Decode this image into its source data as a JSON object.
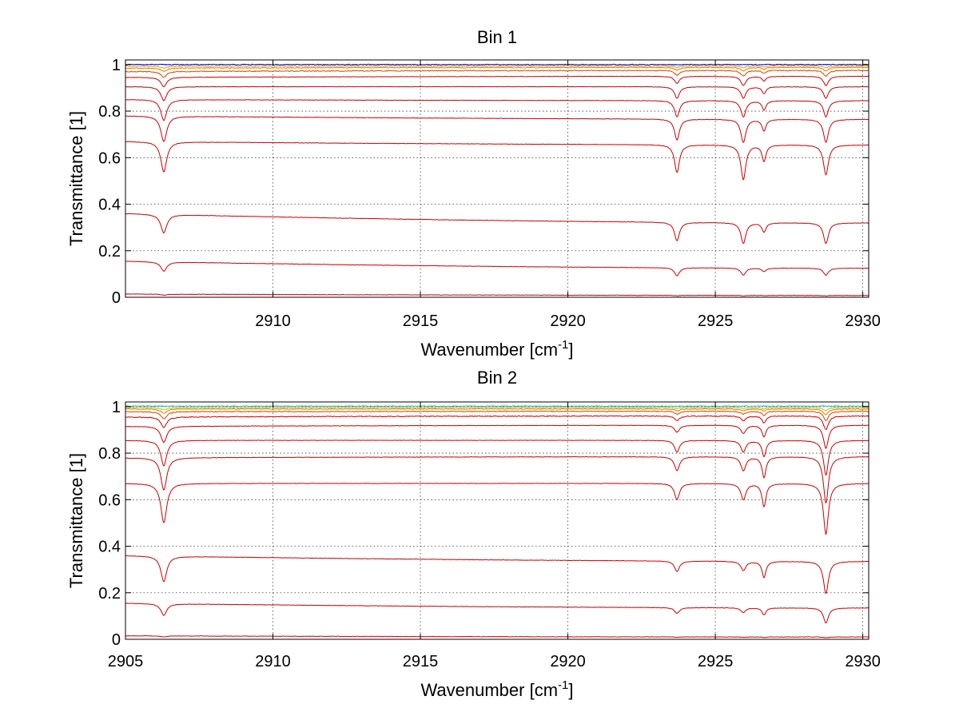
{
  "chart_data": [
    {
      "type": "line",
      "title": "Bin 1",
      "xlabel": "Wavenumber [cm",
      "xlabel_sup": "-1",
      "xlabel_end": "]",
      "ylabel": "Transmittance [1]",
      "xlim": [
        2905,
        2930.2
      ],
      "ylim": [
        0,
        1.02
      ],
      "xticks": [
        2910,
        2915,
        2920,
        2925,
        2930
      ],
      "xtick_labels": [
        "2910",
        "2915",
        "2920",
        "2925",
        "2930"
      ],
      "yticks": [
        0,
        0.2,
        0.4,
        0.6,
        0.8,
        1
      ],
      "ytick_labels": [
        "0",
        "0.2",
        "0.4",
        "0.6",
        "0.8",
        "1"
      ],
      "grid": true,
      "dips": [
        {
          "x": 2906.3,
          "w": 0.12
        },
        {
          "x": 2923.7,
          "w": 0.1
        },
        {
          "x": 2925.95,
          "w": 0.1
        },
        {
          "x": 2926.65,
          "w": 0.08
        },
        {
          "x": 2928.75,
          "w": 0.1
        }
      ],
      "series": [
        {
          "name": "bin1-s1",
          "color": "#cc0000",
          "y_start": 0.014,
          "y_end": 0.008,
          "dip_depths": [
            0.004,
            0.002,
            0.002,
            0.001,
            0.002
          ]
        },
        {
          "name": "bin1-s2",
          "color": "#cc0000",
          "y_start": 0.155,
          "y_end": 0.125,
          "dip_depths": [
            0.04,
            0.035,
            0.03,
            0.015,
            0.03
          ]
        },
        {
          "name": "bin1-s3",
          "color": "#cc0000",
          "y_start": 0.36,
          "y_end": 0.32,
          "dip_depths": [
            0.08,
            0.08,
            0.09,
            0.04,
            0.09
          ]
        },
        {
          "name": "bin1-s4",
          "color": "#cc0000",
          "y_start": 0.67,
          "y_end": 0.655,
          "dip_depths": [
            0.13,
            0.12,
            0.15,
            0.07,
            0.13
          ]
        },
        {
          "name": "bin1-s5",
          "color": "#cc0000",
          "y_start": 0.78,
          "y_end": 0.765,
          "dip_depths": [
            0.11,
            0.09,
            0.1,
            0.05,
            0.1
          ]
        },
        {
          "name": "bin1-s6",
          "color": "#cc0000",
          "y_start": 0.85,
          "y_end": 0.845,
          "dip_depths": [
            0.09,
            0.07,
            0.07,
            0.04,
            0.07
          ]
        },
        {
          "name": "bin1-s7",
          "color": "#cc0000",
          "y_start": 0.905,
          "y_end": 0.905,
          "dip_depths": [
            0.06,
            0.05,
            0.05,
            0.03,
            0.05
          ]
        },
        {
          "name": "bin1-s8",
          "color": "#cc0000",
          "y_start": 0.945,
          "y_end": 0.95,
          "dip_depths": [
            0.04,
            0.03,
            0.04,
            0.02,
            0.04
          ]
        },
        {
          "name": "bin1-s9",
          "color": "#dd4400",
          "y_start": 0.97,
          "y_end": 0.975,
          "dip_depths": [
            0.025,
            0.02,
            0.025,
            0.012,
            0.025
          ]
        },
        {
          "name": "bin1-s10",
          "color": "#ee7700",
          "y_start": 0.985,
          "y_end": 0.988,
          "dip_depths": [
            0.015,
            0.012,
            0.015,
            0.008,
            0.015
          ]
        },
        {
          "name": "bin1-s11",
          "color": "#ddaa00",
          "y_start": 0.993,
          "y_end": 0.994,
          "dip_depths": [
            0.008,
            0.006,
            0.008,
            0.004,
            0.008
          ]
        },
        {
          "name": "bin1-s12",
          "color": "#0000cc",
          "y_start": 1.0,
          "y_end": 1.0,
          "dip_depths": [
            0,
            0,
            0,
            0,
            0
          ]
        }
      ]
    },
    {
      "type": "line",
      "title": "Bin 2",
      "xlabel": "Wavenumber [cm",
      "xlabel_sup": "-1",
      "xlabel_end": "]",
      "ylabel": "Transmittance [1]",
      "xlim": [
        2905,
        2930.2
      ],
      "ylim": [
        0,
        1.02
      ],
      "xticks": [
        2905,
        2910,
        2915,
        2920,
        2925,
        2930
      ],
      "xtick_labels": [
        "2905",
        "2910",
        "2915",
        "2920",
        "2925",
        "2930"
      ],
      "yticks": [
        0,
        0.2,
        0.4,
        0.6,
        0.8,
        1
      ],
      "ytick_labels": [
        "0",
        "0.2",
        "0.4",
        "0.6",
        "0.8",
        "1"
      ],
      "grid": true,
      "dips": [
        {
          "x": 2906.3,
          "w": 0.12
        },
        {
          "x": 2923.7,
          "w": 0.1
        },
        {
          "x": 2925.95,
          "w": 0.1
        },
        {
          "x": 2926.65,
          "w": 0.08
        },
        {
          "x": 2928.75,
          "w": 0.1
        }
      ],
      "series": [
        {
          "name": "bin2-s1",
          "color": "#cc0000",
          "y_start": 0.015,
          "y_end": 0.01,
          "dip_depths": [
            0.004,
            0.002,
            0.002,
            0.002,
            0.003
          ]
        },
        {
          "name": "bin2-s2",
          "color": "#cc0000",
          "y_start": 0.155,
          "y_end": 0.135,
          "dip_depths": [
            0.05,
            0.025,
            0.02,
            0.03,
            0.065
          ]
        },
        {
          "name": "bin2-s3",
          "color": "#cc0000",
          "y_start": 0.36,
          "y_end": 0.335,
          "dip_depths": [
            0.11,
            0.045,
            0.04,
            0.07,
            0.14
          ]
        },
        {
          "name": "bin2-s4",
          "color": "#cc0000",
          "y_start": 0.67,
          "y_end": 0.67,
          "dip_depths": [
            0.17,
            0.07,
            0.07,
            0.1,
            0.22
          ]
        },
        {
          "name": "bin2-s5",
          "color": "#cc0000",
          "y_start": 0.78,
          "y_end": 0.785,
          "dip_depths": [
            0.14,
            0.06,
            0.06,
            0.09,
            0.2
          ]
        },
        {
          "name": "bin2-s6",
          "color": "#cc0000",
          "y_start": 0.855,
          "y_end": 0.855,
          "dip_depths": [
            0.11,
            0.05,
            0.05,
            0.07,
            0.15
          ]
        },
        {
          "name": "bin2-s7",
          "color": "#cc0000",
          "y_start": 0.915,
          "y_end": 0.92,
          "dip_depths": [
            0.07,
            0.03,
            0.035,
            0.05,
            0.1
          ]
        },
        {
          "name": "bin2-s8",
          "color": "#cc0000",
          "y_start": 0.955,
          "y_end": 0.96,
          "dip_depths": [
            0.045,
            0.02,
            0.02,
            0.03,
            0.06
          ]
        },
        {
          "name": "bin2-s9",
          "color": "#dd4400",
          "y_start": 0.978,
          "y_end": 0.98,
          "dip_depths": [
            0.03,
            0.012,
            0.012,
            0.018,
            0.04
          ]
        },
        {
          "name": "bin2-s10",
          "color": "#ee7700",
          "y_start": 0.99,
          "y_end": 0.99,
          "dip_depths": [
            0.018,
            0.008,
            0.008,
            0.01,
            0.025
          ]
        },
        {
          "name": "bin2-s11",
          "color": "#ccbb00",
          "y_start": 0.996,
          "y_end": 0.996,
          "dip_depths": [
            0.01,
            0.004,
            0.004,
            0.006,
            0.012
          ]
        },
        {
          "name": "bin2-s12",
          "color": "#00cccc",
          "y_start": 1.002,
          "y_end": 1.002,
          "dip_depths": [
            0,
            0,
            0,
            0,
            0
          ]
        }
      ]
    }
  ]
}
